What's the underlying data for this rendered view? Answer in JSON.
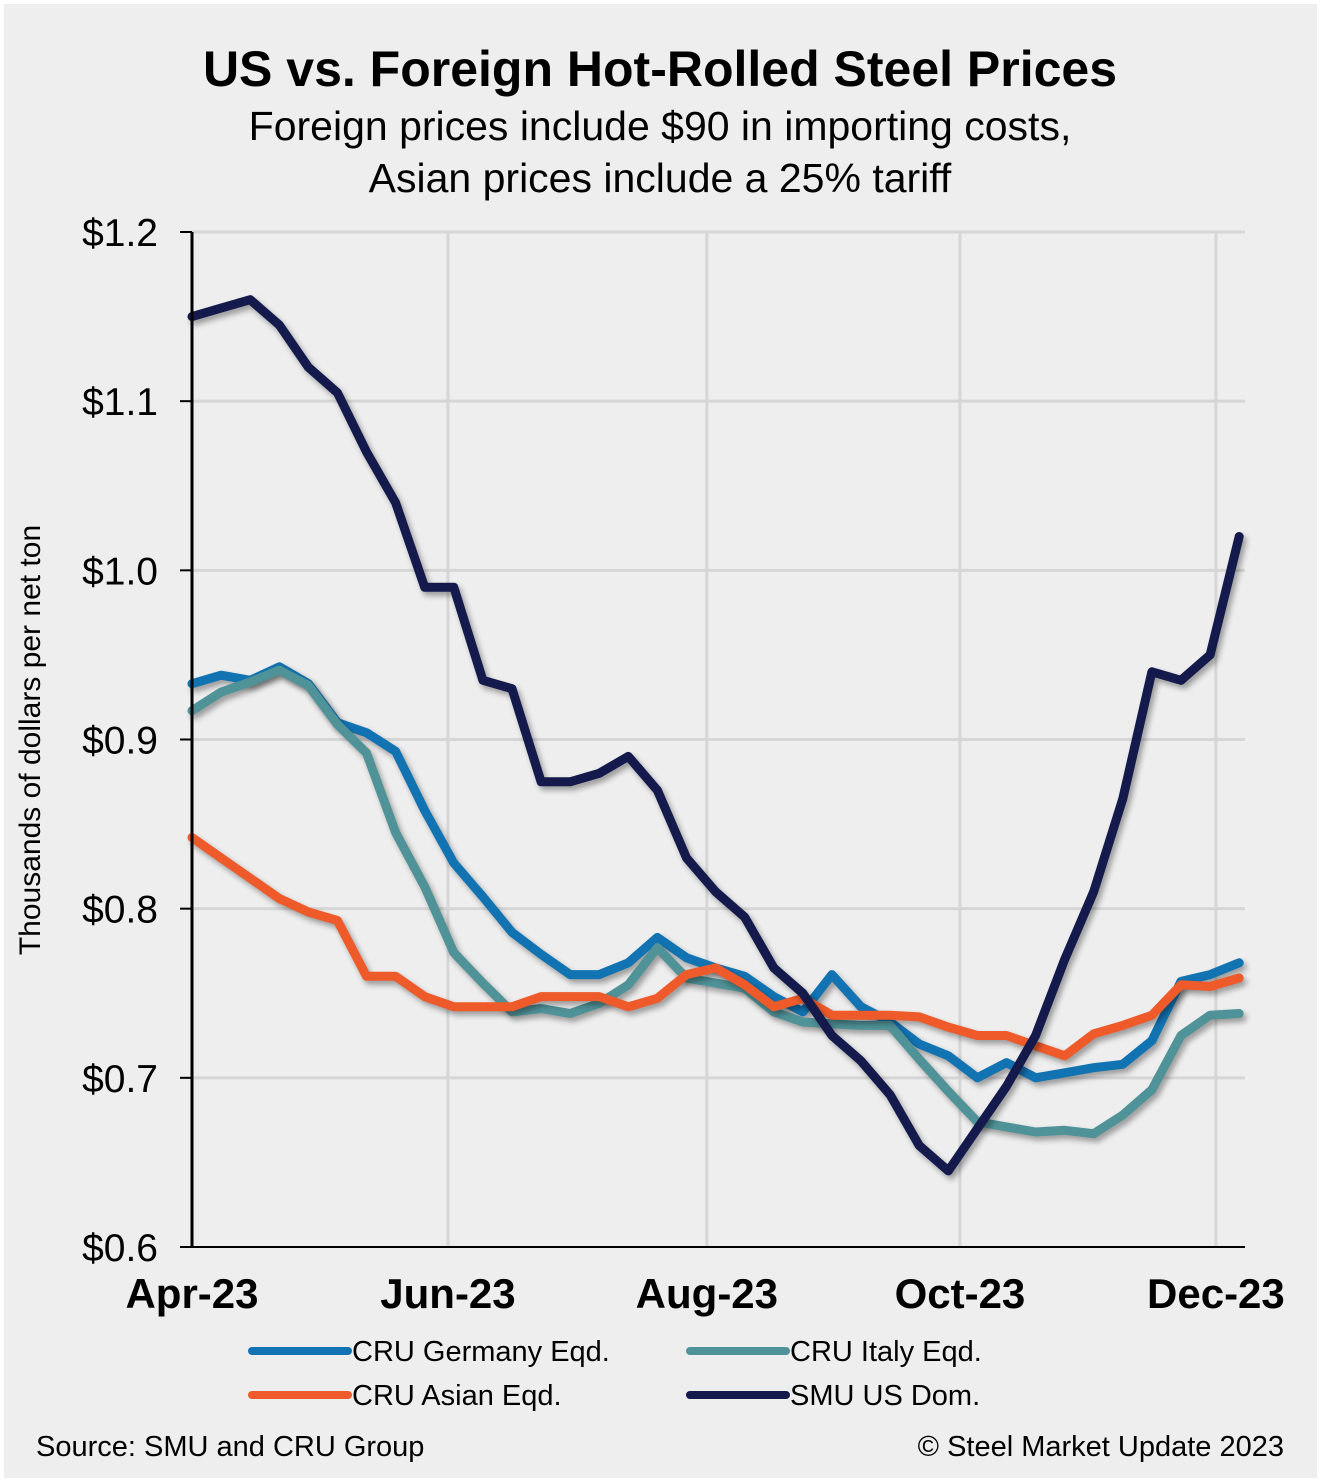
{
  "chart_data": {
    "type": "line",
    "title": "US vs. Foreign Hot-Rolled Steel Prices",
    "subtitle": [
      "Foreign prices include $90 in importing costs,",
      "Asian prices include a 25% tariff"
    ],
    "xlabel": "",
    "ylabel": "Thousands of dollars per net ton",
    "ylim": [
      0.6,
      1.2
    ],
    "yticks": [
      0.6,
      0.7,
      0.8,
      0.9,
      1.0,
      1.1,
      1.2
    ],
    "ytick_labels": [
      "$0.6",
      "$0.7",
      "$0.8",
      "$0.9",
      "$1.0",
      "$1.1",
      "$1.2"
    ],
    "x_unit": "weeks since start of Apr-23",
    "xlim": [
      0,
      36.2
    ],
    "xticks": [
      0,
      8.8,
      17.7,
      26.4,
      35.2
    ],
    "xtick_labels": [
      "Apr-23",
      "Jun-23",
      "Aug-23",
      "Oct-23",
      "Dec-23"
    ],
    "grid": true,
    "legend_placement": "bottom",
    "x": [
      0,
      1,
      2,
      3,
      4,
      5,
      6,
      7,
      8,
      9,
      10,
      11,
      12,
      13,
      14,
      15,
      16,
      17,
      18,
      19,
      20,
      21,
      22,
      23,
      24,
      25,
      26,
      27,
      28,
      29,
      30,
      31,
      32,
      33,
      34,
      35,
      36
    ],
    "series": [
      {
        "name": "CRU Germany Eqd.",
        "color": "#1273b3",
        "values": [
          0.933,
          0.938,
          0.935,
          0.943,
          0.933,
          0.91,
          0.904,
          0.893,
          0.858,
          0.827,
          0.807,
          0.786,
          0.773,
          0.761,
          0.761,
          0.768,
          0.783,
          0.771,
          0.765,
          0.76,
          0.748,
          0.739,
          0.761,
          0.742,
          0.733,
          0.72,
          0.713,
          0.7,
          0.709,
          0.7,
          0.703,
          0.706,
          0.708,
          0.722,
          0.757,
          0.761,
          0.768
        ]
      },
      {
        "name": "CRU Italy Eqd.",
        "color": "#4f9298",
        "values": [
          0.917,
          0.928,
          0.934,
          0.941,
          0.932,
          0.909,
          0.892,
          0.845,
          0.813,
          0.774,
          0.756,
          0.739,
          0.741,
          0.738,
          0.744,
          0.755,
          0.777,
          0.759,
          0.756,
          0.753,
          0.739,
          0.733,
          0.732,
          0.731,
          0.731,
          0.711,
          0.692,
          0.674,
          0.671,
          0.668,
          0.669,
          0.667,
          0.678,
          0.693,
          0.725,
          0.737,
          0.738
        ]
      },
      {
        "name": "CRU Asian Eqd.",
        "color": "#ee5a2a",
        "values": [
          0.842,
          0.83,
          0.818,
          0.806,
          0.798,
          0.793,
          0.76,
          0.76,
          0.748,
          0.742,
          0.742,
          0.742,
          0.748,
          0.748,
          0.748,
          0.742,
          0.747,
          0.761,
          0.765,
          0.755,
          0.742,
          0.747,
          0.737,
          0.737,
          0.737,
          0.736,
          0.73,
          0.725,
          0.725,
          0.719,
          0.713,
          0.726,
          0.731,
          0.737,
          0.755,
          0.754,
          0.759
        ]
      },
      {
        "name": "SMU US Dom.",
        "color": "#141a4c",
        "values": [
          1.15,
          1.155,
          1.16,
          1.145,
          1.12,
          1.105,
          1.07,
          1.04,
          0.99,
          0.99,
          0.935,
          0.93,
          0.875,
          0.875,
          0.88,
          0.89,
          0.87,
          0.83,
          0.81,
          0.795,
          0.765,
          0.75,
          0.725,
          0.71,
          0.69,
          0.66,
          0.645,
          0.67,
          0.695,
          0.725,
          0.77,
          0.81,
          0.865,
          0.94,
          0.935,
          0.95,
          1.02
        ]
      }
    ],
    "source": "Source: SMU and CRU Group",
    "copyright": "© Steel Market Update 2023"
  }
}
